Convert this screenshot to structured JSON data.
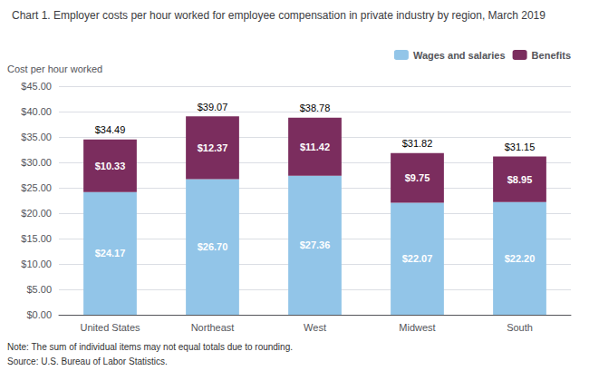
{
  "chart_data": {
    "type": "bar",
    "title": "Chart 1. Employer costs per hour worked for employee compensation in private industry by region, March 2019",
    "ylabel": "Cost per hour worked",
    "categories": [
      "United States",
      "Northeast",
      "West",
      "Midwest",
      "South"
    ],
    "stacked": true,
    "data_labels": true,
    "series": [
      {
        "name": "Wages and salaries",
        "color": "#92C5E8",
        "values": [
          24.17,
          26.7,
          27.36,
          22.07,
          22.2
        ],
        "value_labels": [
          "$24.17",
          "$26.70",
          "$27.36",
          "$22.07",
          "$22.20"
        ]
      },
      {
        "name": "Benefits",
        "color": "#7B2D5E",
        "values": [
          10.33,
          12.37,
          11.42,
          9.75,
          8.95
        ],
        "value_labels": [
          "$10.33",
          "$12.37",
          "$11.42",
          "$9.75",
          "$8.95"
        ]
      }
    ],
    "totals": [
      34.49,
      39.07,
      38.78,
      31.82,
      31.15
    ],
    "total_labels": [
      "$34.49",
      "$39.07",
      "$38.78",
      "$31.82",
      "$31.15"
    ],
    "ylim": [
      0,
      45
    ],
    "yticks": [
      {
        "value": 0,
        "label": "$0.00"
      },
      {
        "value": 5,
        "label": "$5.00"
      },
      {
        "value": 10,
        "label": "$10.00"
      },
      {
        "value": 15,
        "label": "$15.00"
      },
      {
        "value": 20,
        "label": "$20.00"
      },
      {
        "value": 25,
        "label": "$25.00"
      },
      {
        "value": 30,
        "label": "$30.00"
      },
      {
        "value": 35,
        "label": "$35.00"
      },
      {
        "value": 40,
        "label": "$40.00"
      },
      {
        "value": 45,
        "label": "$45.00"
      }
    ],
    "grid": true,
    "legend": "upper right",
    "note": "Note: The sum of individual items may not equal totals due to rounding.",
    "source": "Source: U.S. Bureau of Labor Statistics."
  }
}
